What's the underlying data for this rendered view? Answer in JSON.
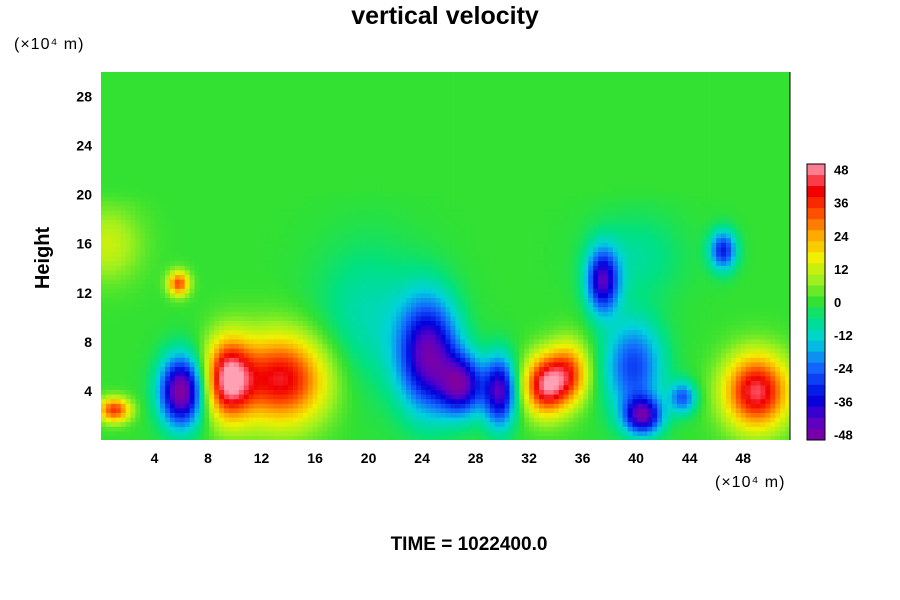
{
  "chart_data": {
    "type": "heatmap",
    "title": "vertical velocity",
    "ylabel": "Height",
    "xlabel": "",
    "x_unit": "(×10⁴ m)",
    "y_unit": "(×10⁴ m)",
    "xlim": [
      0,
      51.5
    ],
    "ylim": [
      0,
      30
    ],
    "x_ticks": [
      4,
      8,
      12,
      16,
      20,
      24,
      28,
      32,
      36,
      40,
      44,
      48
    ],
    "y_ticks": [
      4,
      8,
      12,
      16,
      20,
      24,
      28
    ],
    "colorbar": {
      "range": [
        -50,
        50
      ],
      "ticks": [
        48,
        36,
        24,
        12,
        0,
        -12,
        -24,
        -36,
        -48
      ]
    },
    "features": [
      {
        "x": 1.0,
        "y": 2.5,
        "rx": 1.2,
        "ry": 1.0,
        "value": 35
      },
      {
        "x": 6.0,
        "y": 4.0,
        "rx": 1.6,
        "ry": 2.8,
        "value": -52
      },
      {
        "x": 5.8,
        "y": 12.8,
        "rx": 0.8,
        "ry": 1.0,
        "value": 33
      },
      {
        "x": 9.5,
        "y": 5.0,
        "rx": 1.7,
        "ry": 3.2,
        "value": 45
      },
      {
        "x": 13.5,
        "y": 5.0,
        "rx": 3.4,
        "ry": 3.6,
        "value": 42
      },
      {
        "x": 20.0,
        "y": 10.0,
        "rx": 4.0,
        "ry": 6.0,
        "value": -10
      },
      {
        "x": 24.5,
        "y": 7.0,
        "rx": 2.2,
        "ry": 4.5,
        "value": -45
      },
      {
        "x": 27.0,
        "y": 4.5,
        "rx": 1.6,
        "ry": 2.4,
        "value": -40
      },
      {
        "x": 29.8,
        "y": 4.0,
        "rx": 1.2,
        "ry": 2.8,
        "value": -42
      },
      {
        "x": 33.2,
        "y": 4.5,
        "rx": 1.6,
        "ry": 2.4,
        "value": 44
      },
      {
        "x": 35.0,
        "y": 5.5,
        "rx": 1.5,
        "ry": 2.5,
        "value": 30
      },
      {
        "x": 37.5,
        "y": 13.0,
        "rx": 1.2,
        "ry": 2.6,
        "value": -40
      },
      {
        "x": 39.8,
        "y": 6.0,
        "rx": 2.2,
        "ry": 3.8,
        "value": -28
      },
      {
        "x": 40.5,
        "y": 2.0,
        "rx": 1.4,
        "ry": 1.5,
        "value": -40
      },
      {
        "x": 43.5,
        "y": 3.5,
        "rx": 1.0,
        "ry": 1.3,
        "value": -25
      },
      {
        "x": 46.5,
        "y": 15.5,
        "rx": 1.0,
        "ry": 1.6,
        "value": -32
      },
      {
        "x": 49.0,
        "y": 4.0,
        "rx": 2.4,
        "ry": 3.0,
        "value": 45
      },
      {
        "x": 0.5,
        "y": 16.0,
        "rx": 2.5,
        "ry": 3.0,
        "value": 12
      },
      {
        "x": 40.0,
        "y": 15.0,
        "rx": 3.5,
        "ry": 3.5,
        "value": -8
      }
    ]
  },
  "footer": {
    "time_text": "TIME = 1022400.0"
  }
}
